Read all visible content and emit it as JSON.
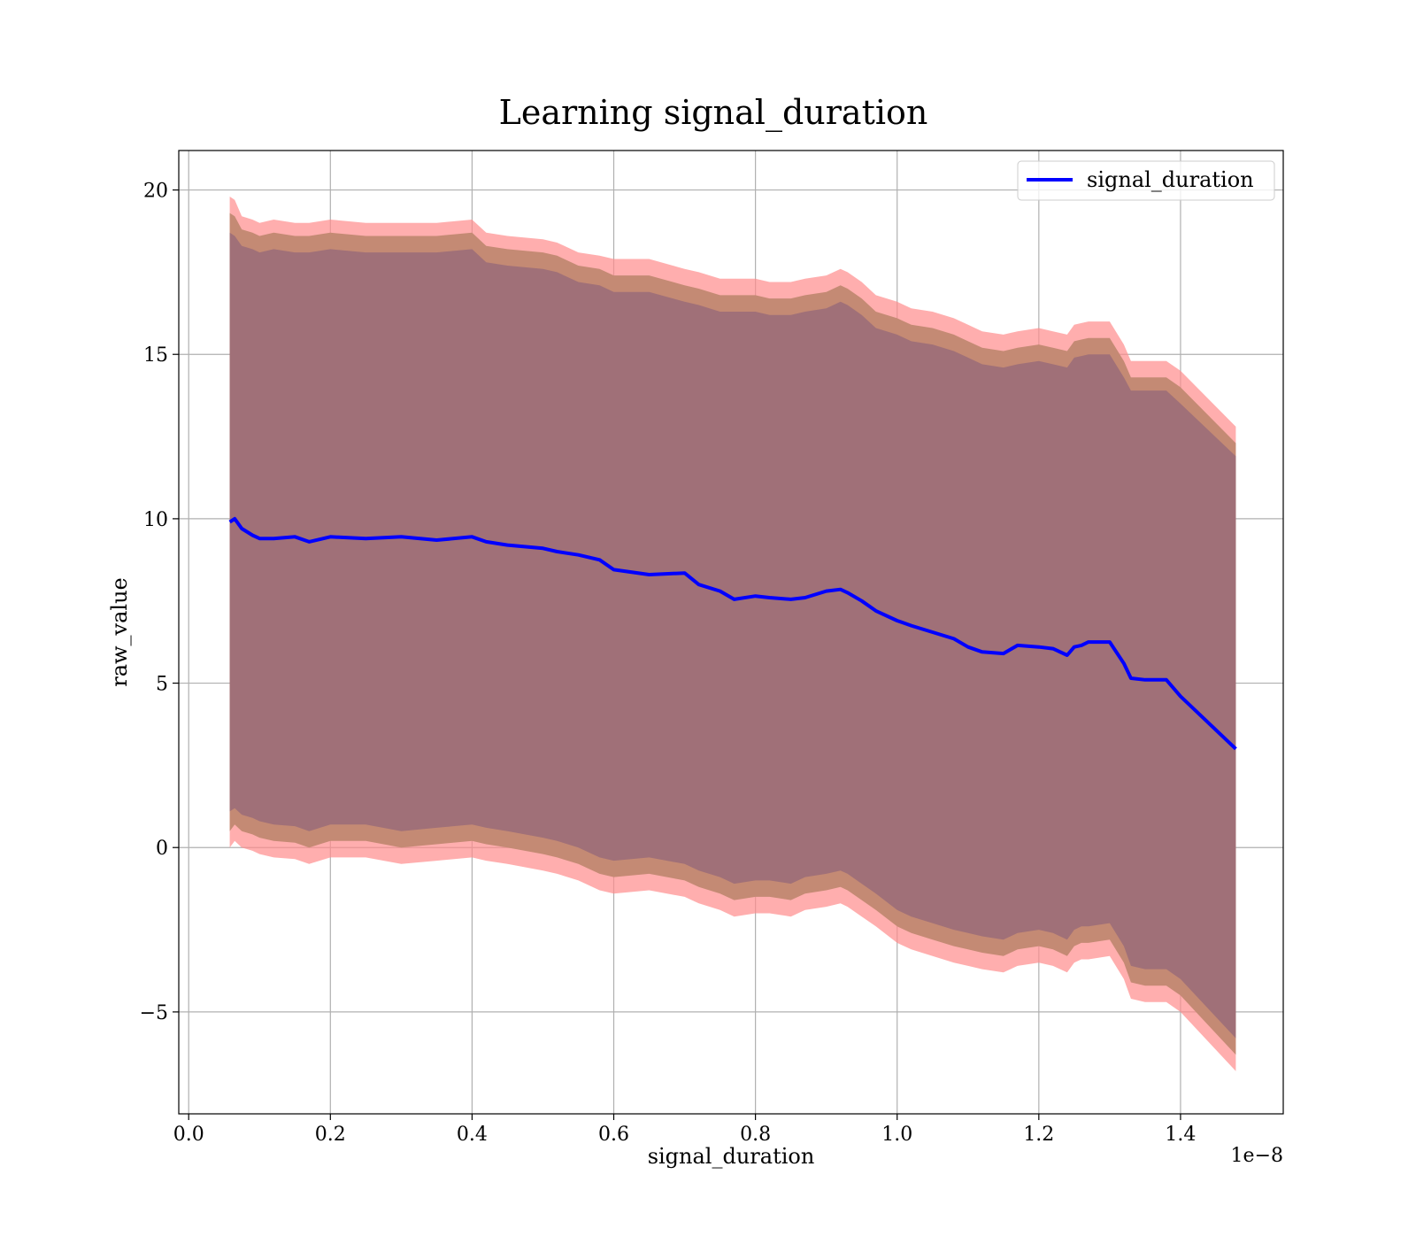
{
  "chart_data": {
    "type": "line",
    "title": "Learning signal_duration",
    "xlabel": "signal_duration",
    "ylabel": "raw_value",
    "x_offset_text": "1e−8",
    "xlim": [
      -0.014,
      1.545
    ],
    "ylim": [
      -8.1,
      21.2
    ],
    "x_ticks": [
      0.0,
      0.2,
      0.4,
      0.6,
      0.8,
      1.0,
      1.2,
      1.4
    ],
    "x_tick_labels": [
      "0.0",
      "0.2",
      "0.4",
      "0.6",
      "0.8",
      "1.0",
      "1.2",
      "1.4"
    ],
    "y_ticks": [
      -5,
      0,
      5,
      10,
      15,
      20
    ],
    "y_tick_labels": [
      "−5",
      "0",
      "5",
      "10",
      "15",
      "20"
    ],
    "grid": true,
    "legend_position": "upper right",
    "colors": {
      "line": "#0000ff",
      "outer_band": "#ff8c8c",
      "middle_band": "#c48a74",
      "inner_band": "#a07078",
      "grid": "#b0b0b0"
    },
    "series": [
      {
        "name": "signal_duration",
        "x": [
          0.058,
          0.065,
          0.075,
          0.09,
          0.1,
          0.12,
          0.15,
          0.17,
          0.2,
          0.25,
          0.3,
          0.35,
          0.4,
          0.42,
          0.45,
          0.5,
          0.52,
          0.55,
          0.58,
          0.6,
          0.65,
          0.7,
          0.72,
          0.75,
          0.77,
          0.8,
          0.82,
          0.85,
          0.87,
          0.9,
          0.92,
          0.93,
          0.95,
          0.97,
          1.0,
          1.02,
          1.05,
          1.08,
          1.1,
          1.12,
          1.15,
          1.17,
          1.2,
          1.22,
          1.24,
          1.25,
          1.26,
          1.27,
          1.3,
          1.32,
          1.33,
          1.35,
          1.38,
          1.4,
          1.478
        ],
        "y": [
          9.9,
          10.0,
          9.7,
          9.5,
          9.4,
          9.4,
          9.45,
          9.3,
          9.45,
          9.4,
          9.45,
          9.35,
          9.45,
          9.3,
          9.2,
          9.1,
          9.0,
          8.9,
          8.75,
          8.45,
          8.3,
          8.35,
          8.0,
          7.8,
          7.55,
          7.65,
          7.6,
          7.55,
          7.6,
          7.8,
          7.85,
          7.75,
          7.5,
          7.2,
          6.9,
          6.75,
          6.55,
          6.35,
          6.1,
          5.95,
          5.9,
          6.15,
          6.1,
          6.05,
          5.85,
          6.1,
          6.15,
          6.25,
          6.25,
          5.6,
          5.15,
          5.1,
          5.1,
          4.6,
          3.0
        ],
        "outer_band": {
          "upper": [
            19.8,
            19.7,
            19.2,
            19.1,
            19.0,
            19.1,
            19.0,
            19.0,
            19.1,
            19.0,
            19.0,
            19.0,
            19.1,
            18.7,
            18.6,
            18.5,
            18.4,
            18.1,
            18.0,
            17.9,
            17.9,
            17.6,
            17.5,
            17.3,
            17.3,
            17.3,
            17.2,
            17.2,
            17.3,
            17.4,
            17.6,
            17.5,
            17.2,
            16.8,
            16.6,
            16.4,
            16.3,
            16.1,
            15.9,
            15.7,
            15.6,
            15.7,
            15.8,
            15.7,
            15.6,
            15.9,
            15.95,
            16.0,
            16.0,
            15.3,
            14.8,
            14.8,
            14.8,
            14.5,
            12.8
          ],
          "lower": [
            0.0,
            0.2,
            0.0,
            -0.1,
            -0.2,
            -0.3,
            -0.35,
            -0.5,
            -0.3,
            -0.3,
            -0.5,
            -0.4,
            -0.3,
            -0.4,
            -0.5,
            -0.7,
            -0.8,
            -1.0,
            -1.3,
            -1.4,
            -1.3,
            -1.5,
            -1.7,
            -1.9,
            -2.1,
            -2.0,
            -2.0,
            -2.1,
            -1.9,
            -1.8,
            -1.7,
            -1.8,
            -2.1,
            -2.4,
            -2.9,
            -3.1,
            -3.3,
            -3.5,
            -3.6,
            -3.7,
            -3.8,
            -3.6,
            -3.5,
            -3.6,
            -3.8,
            -3.5,
            -3.4,
            -3.4,
            -3.3,
            -4.0,
            -4.6,
            -4.7,
            -4.7,
            -5.0,
            -6.8
          ]
        },
        "middle_band": {
          "upper": [
            19.3,
            19.2,
            18.8,
            18.7,
            18.6,
            18.7,
            18.6,
            18.6,
            18.7,
            18.6,
            18.6,
            18.6,
            18.7,
            18.3,
            18.2,
            18.1,
            18.0,
            17.7,
            17.6,
            17.4,
            17.4,
            17.1,
            17.0,
            16.8,
            16.8,
            16.8,
            16.7,
            16.7,
            16.8,
            16.9,
            17.1,
            17.0,
            16.7,
            16.3,
            16.1,
            15.9,
            15.8,
            15.6,
            15.4,
            15.2,
            15.1,
            15.2,
            15.3,
            15.2,
            15.1,
            15.4,
            15.45,
            15.5,
            15.5,
            14.8,
            14.3,
            14.3,
            14.3,
            14.0,
            12.3
          ],
          "lower": [
            0.5,
            0.7,
            0.5,
            0.4,
            0.3,
            0.2,
            0.15,
            0.0,
            0.2,
            0.2,
            0.0,
            0.1,
            0.2,
            0.1,
            0.0,
            -0.2,
            -0.3,
            -0.5,
            -0.8,
            -0.9,
            -0.8,
            -1.0,
            -1.2,
            -1.4,
            -1.6,
            -1.5,
            -1.5,
            -1.6,
            -1.4,
            -1.3,
            -1.2,
            -1.3,
            -1.6,
            -1.9,
            -2.4,
            -2.6,
            -2.8,
            -3.0,
            -3.1,
            -3.2,
            -3.3,
            -3.1,
            -3.0,
            -3.1,
            -3.3,
            -3.0,
            -2.9,
            -2.9,
            -2.8,
            -3.5,
            -4.1,
            -4.2,
            -4.2,
            -4.5,
            -6.3
          ]
        },
        "inner_band": {
          "upper": [
            18.7,
            18.6,
            18.3,
            18.2,
            18.1,
            18.2,
            18.1,
            18.1,
            18.2,
            18.1,
            18.1,
            18.1,
            18.2,
            17.8,
            17.7,
            17.6,
            17.5,
            17.2,
            17.1,
            16.9,
            16.9,
            16.6,
            16.5,
            16.3,
            16.3,
            16.3,
            16.2,
            16.2,
            16.3,
            16.4,
            16.6,
            16.5,
            16.2,
            15.8,
            15.6,
            15.4,
            15.3,
            15.1,
            14.9,
            14.7,
            14.6,
            14.7,
            14.8,
            14.7,
            14.6,
            14.9,
            14.95,
            15.0,
            15.0,
            14.3,
            13.9,
            13.9,
            13.9,
            13.5,
            11.9
          ],
          "lower": [
            1.1,
            1.2,
            1.0,
            0.9,
            0.8,
            0.7,
            0.65,
            0.5,
            0.7,
            0.7,
            0.5,
            0.6,
            0.7,
            0.6,
            0.5,
            0.3,
            0.2,
            0.0,
            -0.3,
            -0.4,
            -0.3,
            -0.5,
            -0.7,
            -0.9,
            -1.1,
            -1.0,
            -1.0,
            -1.1,
            -0.9,
            -0.8,
            -0.7,
            -0.8,
            -1.1,
            -1.4,
            -1.9,
            -2.1,
            -2.3,
            -2.5,
            -2.6,
            -2.7,
            -2.8,
            -2.6,
            -2.5,
            -2.6,
            -2.8,
            -2.5,
            -2.4,
            -2.4,
            -2.3,
            -3.0,
            -3.6,
            -3.7,
            -3.7,
            -4.0,
            -5.8
          ]
        }
      }
    ]
  }
}
